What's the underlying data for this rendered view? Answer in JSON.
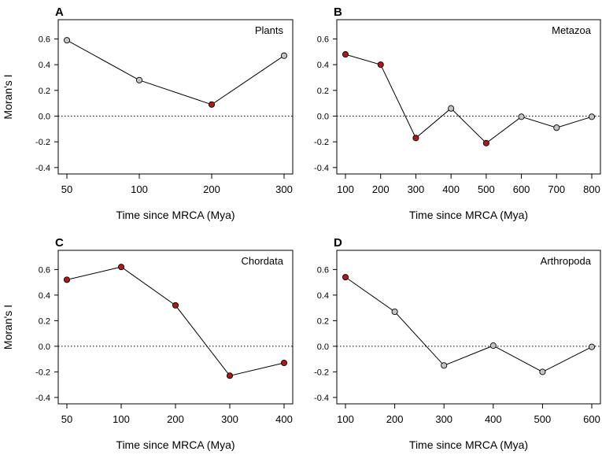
{
  "colors": {
    "significant": "#b01717",
    "nonsignificant": "#c4c4c4",
    "line": "#000000",
    "point_outline": "#000000"
  },
  "chart_data": [
    {
      "panel_letter": "A",
      "type": "line",
      "title": "Plants",
      "xlabel": "Time since MRCA (Mya)",
      "ylabel": "Moran's I",
      "x_categories": [
        "50",
        "100",
        "200",
        "300"
      ],
      "yticks": [
        "0.6",
        "0.4",
        "0.2",
        "0.0",
        "-0.2",
        "-0.4"
      ],
      "ylim": [
        -0.45,
        0.75
      ],
      "reference_line": 0,
      "points": [
        {
          "x": "50",
          "y": 0.59,
          "significant": false
        },
        {
          "x": "100",
          "y": 0.28,
          "significant": false
        },
        {
          "x": "200",
          "y": 0.09,
          "significant": true
        },
        {
          "x": "300",
          "y": 0.47,
          "significant": false
        }
      ]
    },
    {
      "panel_letter": "B",
      "type": "line",
      "title": "Metazoa",
      "xlabel": "Time since MRCA (Mya)",
      "ylabel": "",
      "x_categories": [
        "100",
        "200",
        "300",
        "400",
        "500",
        "600",
        "700",
        "800"
      ],
      "yticks": [
        "0.6",
        "0.4",
        "0.2",
        "0.0",
        "-0.2",
        "-0.4"
      ],
      "ylim": [
        -0.45,
        0.75
      ],
      "reference_line": 0,
      "points": [
        {
          "x": "100",
          "y": 0.48,
          "significant": true
        },
        {
          "x": "200",
          "y": 0.4,
          "significant": true
        },
        {
          "x": "300",
          "y": -0.17,
          "significant": true
        },
        {
          "x": "400",
          "y": 0.06,
          "significant": false
        },
        {
          "x": "500",
          "y": -0.21,
          "significant": true
        },
        {
          "x": "600",
          "y": -0.005,
          "significant": false
        },
        {
          "x": "700",
          "y": -0.09,
          "significant": false
        },
        {
          "x": "800",
          "y": -0.005,
          "significant": false
        }
      ]
    },
    {
      "panel_letter": "C",
      "type": "line",
      "title": "Chordata",
      "xlabel": "Time since MRCA (Mya)",
      "ylabel": "Moran's I",
      "x_categories": [
        "50",
        "100",
        "200",
        "300",
        "400"
      ],
      "yticks": [
        "0.6",
        "0.4",
        "0.2",
        "0.0",
        "-0.2",
        "-0.4"
      ],
      "ylim": [
        -0.45,
        0.75
      ],
      "reference_line": 0,
      "points": [
        {
          "x": "50",
          "y": 0.52,
          "significant": true
        },
        {
          "x": "100",
          "y": 0.62,
          "significant": true
        },
        {
          "x": "200",
          "y": 0.32,
          "significant": true
        },
        {
          "x": "300",
          "y": -0.23,
          "significant": true
        },
        {
          "x": "400",
          "y": -0.13,
          "significant": true
        }
      ]
    },
    {
      "panel_letter": "D",
      "type": "line",
      "title": "Arthropoda",
      "xlabel": "Time since MRCA (Mya)",
      "ylabel": "",
      "x_categories": [
        "100",
        "200",
        "300",
        "400",
        "500",
        "600"
      ],
      "yticks": [
        "0.6",
        "0.4",
        "0.2",
        "0.0",
        "-0.2",
        "-0.4"
      ],
      "ylim": [
        -0.45,
        0.75
      ],
      "reference_line": 0,
      "points": [
        {
          "x": "100",
          "y": 0.54,
          "significant": true
        },
        {
          "x": "200",
          "y": 0.27,
          "significant": false
        },
        {
          "x": "300",
          "y": -0.15,
          "significant": false
        },
        {
          "x": "400",
          "y": 0.005,
          "significant": false
        },
        {
          "x": "500",
          "y": -0.2,
          "significant": false
        },
        {
          "x": "600",
          "y": -0.005,
          "significant": false
        }
      ]
    }
  ]
}
